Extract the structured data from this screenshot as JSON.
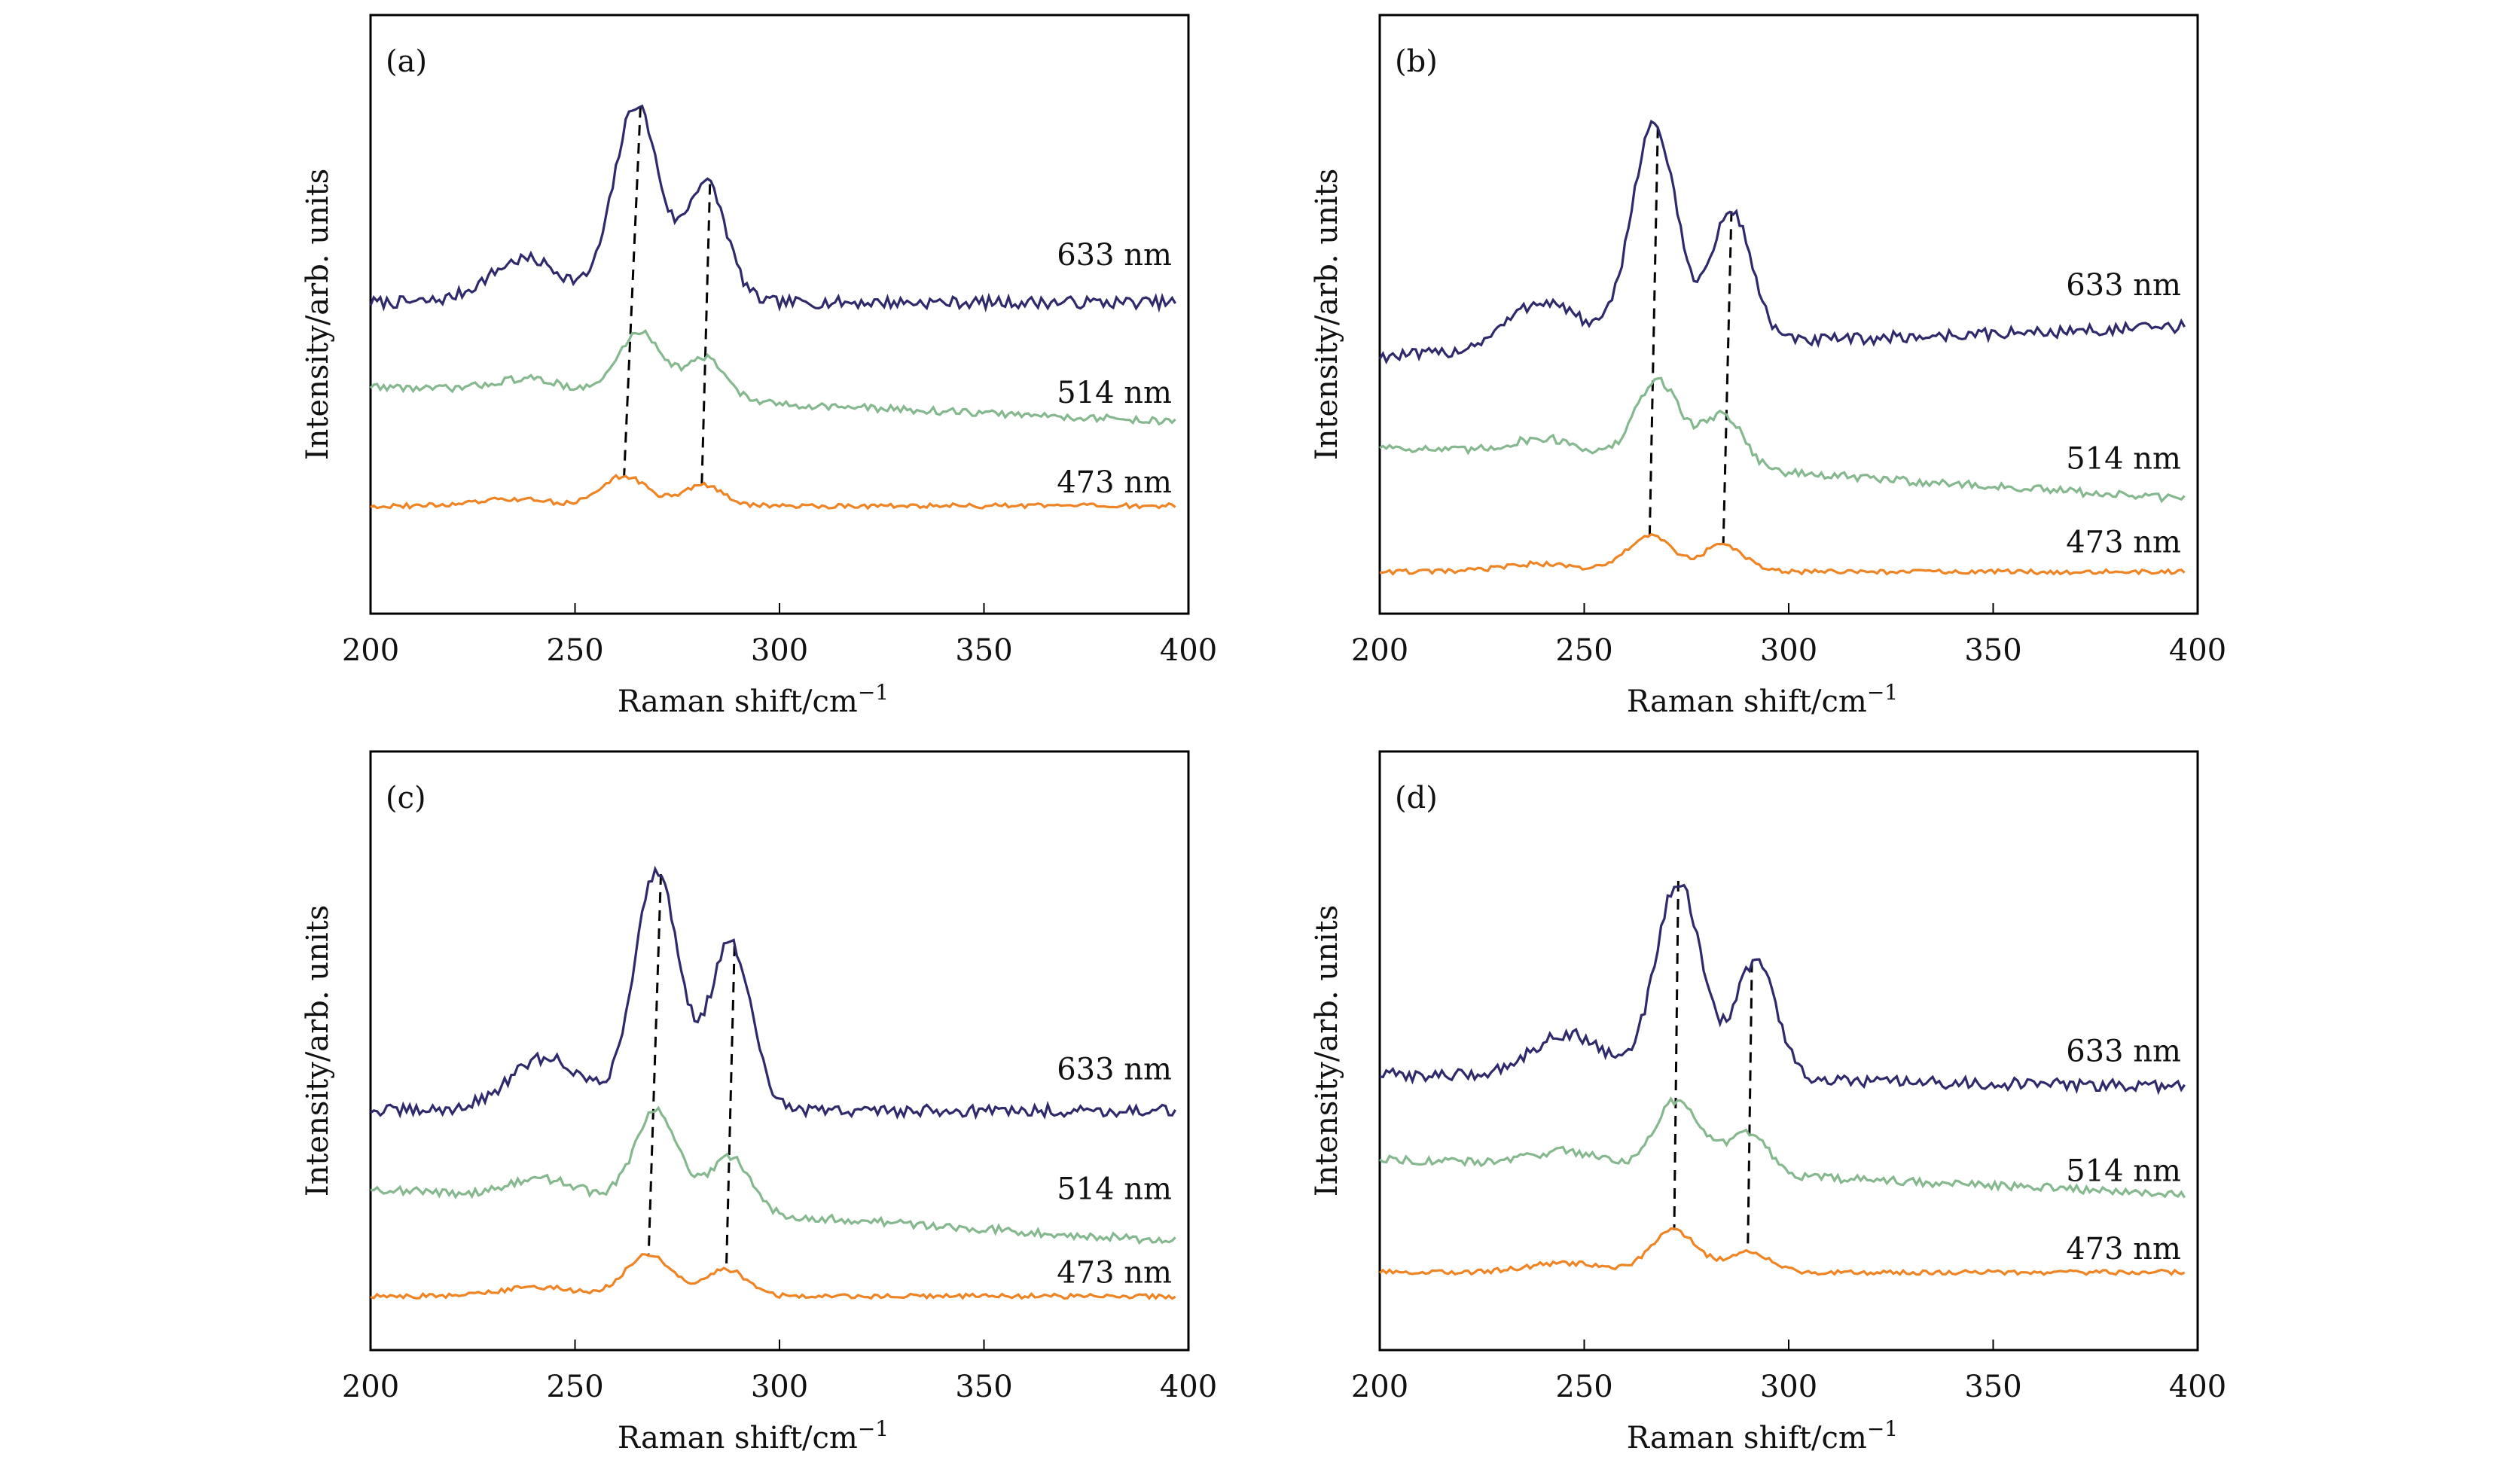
{
  "colors": {
    "633": "#2e2a6b",
    "514": "#86b88f",
    "473": "#ef8424",
    "axis": "#000000",
    "marker": "#000000"
  },
  "chart_data": [
    {
      "panel_label": "(a)",
      "type": "line",
      "xlabel": "Raman shift/cm",
      "xlabel_sup": "−1",
      "ylabel": "Intensity/arb. units",
      "xlim": [
        200,
        400
      ],
      "ylim": [
        0,
        1
      ],
      "xticks": [
        "200",
        "250",
        "300",
        "350",
        "400"
      ],
      "series": [
        {
          "name": "633 nm",
          "baseline": 0.52,
          "slope": 0.0,
          "p1": 265,
          "a1": 0.33,
          "p2": 282,
          "a2": 0.2,
          "noise": 0.01,
          "label_at": 0.6
        },
        {
          "name": "514 nm",
          "baseline": 0.38,
          "slope": -0.06,
          "p1": 266,
          "a1": 0.11,
          "p2": 282,
          "a2": 0.07,
          "noise": 0.006,
          "label_at": 0.37
        },
        {
          "name": "473 nm",
          "baseline": 0.18,
          "slope": 0.0,
          "p1": 262,
          "a1": 0.05,
          "p2": 281,
          "a2": 0.035,
          "noise": 0.004,
          "label_at": 0.22
        }
      ],
      "markers": [
        {
          "top_x": 266,
          "bottom_x": 262
        },
        {
          "top_x": 283,
          "bottom_x": 281
        }
      ]
    },
    {
      "panel_label": "(b)",
      "type": "line",
      "xlabel": "Raman shift/cm",
      "xlabel_sup": "−1",
      "ylabel": "Intensity/arb. units",
      "xlim": [
        200,
        400
      ],
      "ylim": [
        0,
        1
      ],
      "xticks": [
        "200",
        "250",
        "300",
        "350",
        "400"
      ],
      "series": [
        {
          "name": "633 nm",
          "baseline": 0.43,
          "slope": 0.05,
          "p1": 267,
          "a1": 0.37,
          "p2": 286,
          "a2": 0.22,
          "noise": 0.01,
          "label_at": 0.55
        },
        {
          "name": "514 nm",
          "baseline": 0.28,
          "slope": -0.09,
          "p1": 268,
          "a1": 0.14,
          "p2": 284,
          "a2": 0.09,
          "noise": 0.007,
          "label_at": 0.26
        },
        {
          "name": "473 nm",
          "baseline": 0.07,
          "slope": 0.0,
          "p1": 266,
          "a1": 0.06,
          "p2": 284,
          "a2": 0.045,
          "noise": 0.004,
          "label_at": 0.12
        }
      ],
      "markers": [
        {
          "top_x": 268,
          "bottom_x": 266
        },
        {
          "top_x": 286,
          "bottom_x": 284
        }
      ]
    },
    {
      "panel_label": "(c)",
      "type": "line",
      "xlabel": "Raman shift/cm",
      "xlabel_sup": "−1",
      "ylabel": "Intensity/arb. units",
      "xlim": [
        200,
        400
      ],
      "ylim": [
        0,
        1
      ],
      "xticks": [
        "200",
        "250",
        "300",
        "350",
        "400"
      ],
      "series": [
        {
          "name": "633 nm",
          "baseline": 0.4,
          "slope": 0.0,
          "p1": 270,
          "a1": 0.4,
          "p2": 288,
          "a2": 0.28,
          "noise": 0.01,
          "label_at": 0.47
        },
        {
          "name": "514 nm",
          "baseline": 0.27,
          "slope": -0.09,
          "p1": 270,
          "a1": 0.16,
          "p2": 288,
          "a2": 0.09,
          "noise": 0.007,
          "label_at": 0.27
        },
        {
          "name": "473 nm",
          "baseline": 0.09,
          "slope": 0.0,
          "p1": 268,
          "a1": 0.07,
          "p2": 287,
          "a2": 0.045,
          "noise": 0.004,
          "label_at": 0.13
        }
      ],
      "markers": [
        {
          "top_x": 271,
          "bottom_x": 268
        },
        {
          "top_x": 289,
          "bottom_x": 287
        }
      ]
    },
    {
      "panel_label": "(d)",
      "type": "line",
      "xlabel": "Raman shift/cm",
      "xlabel_sup": "−1",
      "ylabel": "Intensity/arb. units",
      "xlim": [
        200,
        400
      ],
      "ylim": [
        0,
        1
      ],
      "xticks": [
        "200",
        "250",
        "300",
        "350",
        "400"
      ],
      "series": [
        {
          "name": "633 nm",
          "baseline": 0.46,
          "slope": -0.02,
          "p1": 273,
          "a1": 0.33,
          "p2": 292,
          "a2": 0.2,
          "noise": 0.01,
          "label_at": 0.5
        },
        {
          "name": "514 nm",
          "baseline": 0.32,
          "slope": -0.06,
          "p1": 273,
          "a1": 0.12,
          "p2": 290,
          "a2": 0.07,
          "noise": 0.007,
          "label_at": 0.3
        },
        {
          "name": "473 nm",
          "baseline": 0.13,
          "slope": 0.0,
          "p1": 272,
          "a1": 0.07,
          "p2": 290,
          "a2": 0.035,
          "noise": 0.004,
          "label_at": 0.17
        }
      ],
      "markers": [
        {
          "top_x": 273,
          "bottom_x": 272
        },
        {
          "top_x": 291,
          "bottom_x": 290
        }
      ]
    }
  ]
}
